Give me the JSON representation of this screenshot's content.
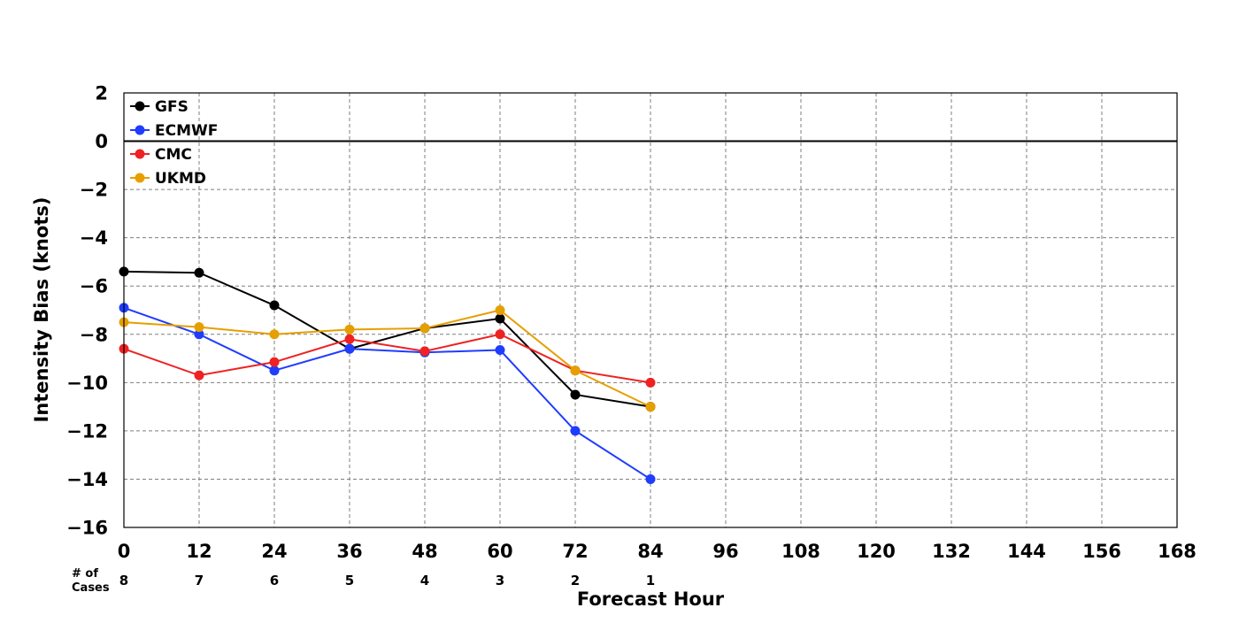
{
  "chart_data": {
    "type": "line",
    "xlabel": "Forecast Hour",
    "ylabel": "Intensity Bias (knots)",
    "xlim": [
      0,
      168
    ],
    "ylim": [
      -16,
      2
    ],
    "x_ticks": [
      "0",
      "12",
      "24",
      "36",
      "48",
      "60",
      "72",
      "84",
      "96",
      "108",
      "120",
      "132",
      "144",
      "156",
      "168"
    ],
    "y_ticks": [
      "2",
      "0",
      "−2",
      "−4",
      "−6",
      "−8",
      "−10",
      "−12",
      "−14",
      "−16"
    ],
    "grid": true,
    "reference_line": 0,
    "legend_position": "top-left",
    "x": [
      0,
      12,
      24,
      36,
      48,
      60,
      72,
      84
    ],
    "series": [
      {
        "name": "GFS",
        "color": "#000000",
        "values": [
          -5.4,
          -5.45,
          -6.8,
          -8.6,
          -7.75,
          -7.35,
          -10.5,
          -11.0
        ]
      },
      {
        "name": "ECMWF",
        "color": "#1f3cff",
        "values": [
          -6.9,
          -8.0,
          -9.5,
          -8.6,
          -8.75,
          -8.65,
          -12.0,
          -14.0
        ]
      },
      {
        "name": "CMC",
        "color": "#ee2222",
        "values": [
          -8.6,
          -9.7,
          -9.15,
          -8.2,
          -8.7,
          -8.0,
          -9.5,
          -10.0
        ]
      },
      {
        "name": "UKMD",
        "color": "#e69f00",
        "values": [
          -7.5,
          -7.7,
          -8.0,
          -7.8,
          -7.75,
          -7.0,
          -9.5,
          -11.0
        ]
      }
    ],
    "cases": {
      "label_line1": "# of",
      "label_line2": "Cases",
      "values": [
        "8",
        "7",
        "6",
        "5",
        "4",
        "3",
        "2",
        "1"
      ]
    }
  }
}
